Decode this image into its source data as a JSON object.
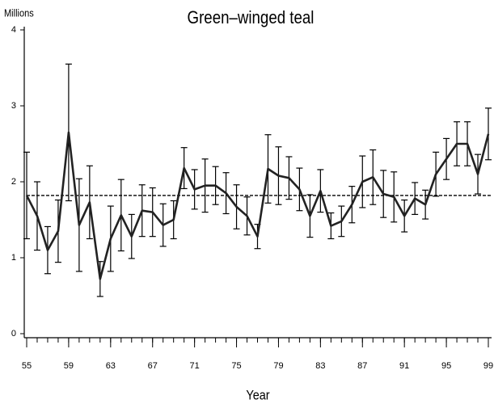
{
  "chart_data": {
    "type": "line",
    "title": "Green–winged  teal",
    "y_label": "Millions",
    "x_label": "Year",
    "x": [
      55,
      56,
      57,
      58,
      59,
      60,
      61,
      62,
      63,
      64,
      65,
      66,
      67,
      68,
      69,
      70,
      71,
      72,
      73,
      74,
      75,
      76,
      77,
      78,
      79,
      80,
      81,
      82,
      83,
      84,
      85,
      86,
      87,
      88,
      89,
      90,
      91,
      92,
      93,
      94,
      95,
      96,
      97,
      98,
      99
    ],
    "series": [
      {
        "color": "#222222",
        "values": [
          1.82,
          1.55,
          1.1,
          1.35,
          2.65,
          1.43,
          1.73,
          0.72,
          1.25,
          1.56,
          1.28,
          1.62,
          1.6,
          1.43,
          1.5,
          2.18,
          1.9,
          1.95,
          1.95,
          1.85,
          1.67,
          1.55,
          1.28,
          2.17,
          2.08,
          2.05,
          1.9,
          1.55,
          1.88,
          1.42,
          1.48,
          1.7,
          2.0,
          2.06,
          1.84,
          1.8,
          1.55,
          1.78,
          1.7,
          2.1,
          2.3,
          2.5,
          2.5,
          2.1,
          2.63
        ],
        "errors": [
          0.57,
          0.45,
          0.31,
          0.41,
          0.9,
          0.61,
          0.48,
          0.23,
          0.43,
          0.47,
          0.29,
          0.34,
          0.32,
          0.28,
          0.25,
          0.27,
          0.26,
          0.35,
          0.25,
          0.27,
          0.29,
          0.25,
          0.16,
          0.45,
          0.38,
          0.28,
          0.28,
          0.28,
          0.28,
          0.17,
          0.2,
          0.24,
          0.34,
          0.36,
          0.31,
          0.33,
          0.21,
          0.21,
          0.19,
          0.29,
          0.27,
          0.29,
          0.29,
          0.26,
          0.34
        ]
      }
    ],
    "reference_line": 1.82,
    "xlim": [
      55,
      99
    ],
    "xticks": [
      55,
      59,
      63,
      67,
      71,
      75,
      79,
      83,
      87,
      91,
      95,
      99
    ],
    "ylim": [
      0,
      4
    ],
    "yticks": [
      0,
      1,
      2,
      3,
      4
    ]
  }
}
